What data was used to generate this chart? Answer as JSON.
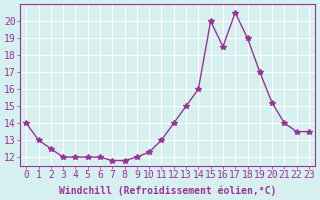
{
  "x": [
    0,
    1,
    2,
    3,
    4,
    5,
    6,
    7,
    8,
    9,
    10,
    11,
    12,
    13,
    14,
    15,
    16,
    17,
    18,
    19,
    20,
    21,
    22,
    23
  ],
  "y": [
    14,
    13,
    12.5,
    12,
    12,
    12,
    12,
    11.8,
    11.8,
    12,
    12.3,
    13,
    14,
    15,
    16,
    20,
    18.5,
    20.5,
    19,
    17,
    15.2,
    14,
    13.5,
    13.5
  ],
  "line_color": "#993399",
  "marker": "*",
  "marker_size": 4,
  "background_color": "#d6f0f0",
  "grid_color": "#ffffff",
  "xlabel": "Windchill (Refroidissement éolien,°C)",
  "xlabel_fontsize": 7,
  "tick_fontsize": 7,
  "ylim": [
    11.5,
    21
  ],
  "xlim": [
    -0.5,
    23.5
  ],
  "yticks": [
    12,
    13,
    14,
    15,
    16,
    17,
    18,
    19,
    20
  ],
  "xticks": [
    0,
    1,
    2,
    3,
    4,
    5,
    6,
    7,
    8,
    9,
    10,
    11,
    12,
    13,
    14,
    15,
    16,
    17,
    18,
    19,
    20,
    21,
    22,
    23
  ]
}
